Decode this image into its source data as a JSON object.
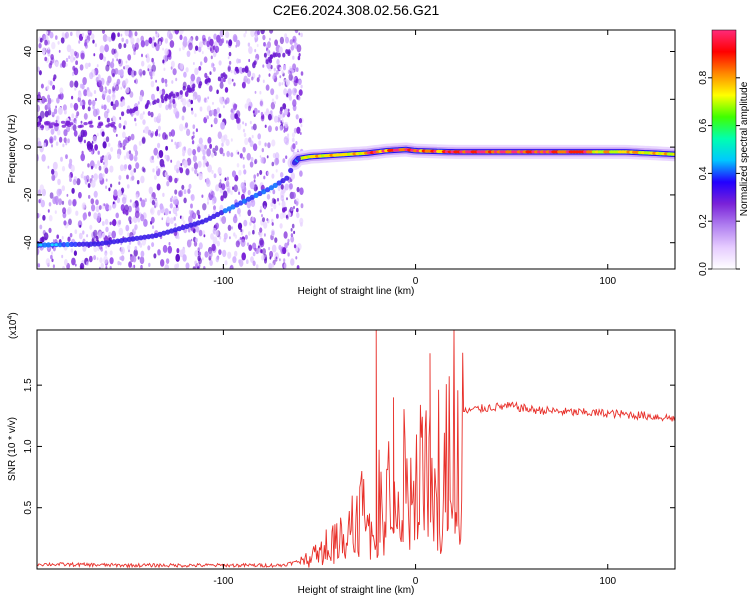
{
  "title": "C2E6.2024.308.02.56.G21",
  "chart_data": [
    {
      "type": "heatmap",
      "xlabel": "Height of straight line (km)",
      "ylabel": "Frequency (Hz)",
      "xlim": [
        -197,
        135
      ],
      "ylim": [
        -51,
        49
      ],
      "xticks": [
        -100,
        0,
        100
      ],
      "yticks": [
        -40,
        -20,
        0,
        20,
        40
      ],
      "colorbar": {
        "label": "Normalized spectral amplitude",
        "range": [
          0,
          1
        ],
        "ticks": [
          "0.0",
          "0.2",
          "0.4",
          "0.6",
          "0.8"
        ],
        "tick_values": [
          0.0,
          0.2,
          0.4,
          0.6,
          0.8
        ],
        "colors": [
          "#ffffff",
          "#e6ccff",
          "#b07ff0",
          "#7a22d8",
          "#2200ff",
          "#00c8ff",
          "#00ffb0",
          "#40ff00",
          "#ffff00",
          "#ff8800",
          "#ff0000",
          "#ff2a7a"
        ]
      },
      "noise_region_x": [
        -197,
        -63
      ],
      "ridge": {
        "x": [
          -197,
          -165,
          -135,
          -110,
          -95,
          -85,
          -75,
          -67,
          -62,
          -55,
          -45,
          -35,
          -25,
          -15,
          -5,
          0,
          20,
          50,
          80,
          110,
          135
        ],
        "y": [
          -41,
          -40.5,
          -37,
          -31,
          -25,
          -21,
          -17,
          -13,
          -5,
          -4,
          -3.5,
          -3,
          -2.5,
          -1.5,
          -1,
          -1.5,
          -2,
          -2,
          -2,
          -2,
          -3
        ]
      },
      "diagonal_line": {
        "x": [
          -160,
          -65
        ],
        "y": [
          12,
          40
        ]
      }
    },
    {
      "type": "line",
      "xlabel": "Height of straight line (km)",
      "ylabel": "SNR (10 * v/v)",
      "yscale_label": "(x10",
      "yscale_exp": "4",
      "yscale_close": ")",
      "xlim": [
        -197,
        135
      ],
      "ylim": [
        0,
        1.95
      ],
      "xticks": [
        -100,
        0,
        100
      ],
      "yticks": [
        0.5,
        1.0,
        1.5
      ],
      "yticklabels": [
        "0.5",
        "1.0",
        "1.5"
      ],
      "series": [
        {
          "color": "#e8302a",
          "x": [
            -197,
            -150,
            -100,
            -70,
            -58,
            -52,
            -45,
            -40,
            -35,
            -30,
            -25,
            -20,
            -15,
            -10,
            -5,
            0,
            5,
            10,
            15,
            20,
            25,
            30,
            40,
            50,
            60,
            80,
            100,
            120,
            135
          ],
          "y": [
            0.04,
            0.03,
            0.03,
            0.03,
            0.07,
            0.15,
            0.22,
            0.28,
            0.35,
            0.42,
            0.55,
            0.65,
            0.72,
            0.75,
            0.8,
            0.85,
            0.9,
            1.0,
            1.12,
            1.22,
            1.28,
            1.3,
            1.32,
            1.33,
            1.3,
            1.28,
            1.27,
            1.25,
            1.23
          ]
        }
      ],
      "spikes": [
        {
          "x": -20.5,
          "y": 1.95
        },
        {
          "x": 7.5,
          "y": 1.76
        },
        {
          "x": -11.5,
          "y": 1.4
        }
      ]
    }
  ]
}
